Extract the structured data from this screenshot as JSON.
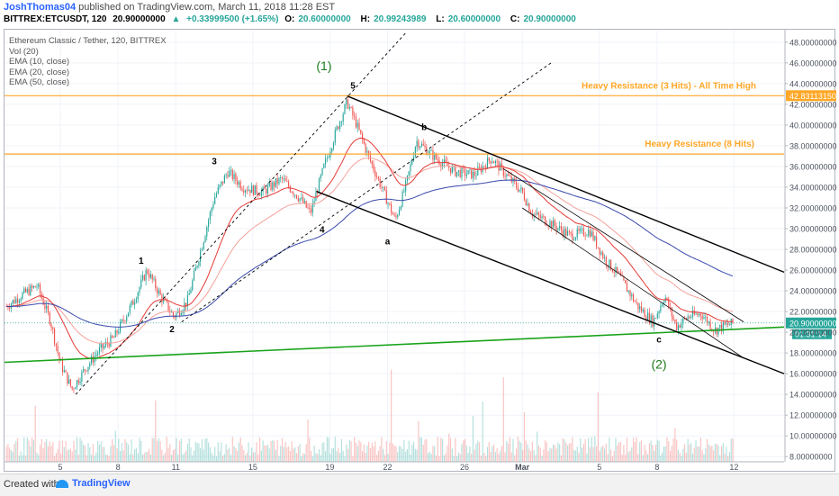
{
  "header": {
    "author": "JoshThomas04",
    "published_text": "published on TradingView.com, March 11, 2018 11:28 EST",
    "symbol": "BITTREX:ETCUSDT, 120",
    "price": "20.90000000",
    "arrow": "▲",
    "change": "+0.33999500 (+1.65%)",
    "open_label": "O:",
    "open": "20.60000000",
    "high_label": "H:",
    "high": "20.99243989",
    "low_label": "L:",
    "low": "20.60000000",
    "close_label": "C:",
    "close": "20.90000000"
  },
  "legend": {
    "title": "Ethereum Classic / Tether, 120, BITTREX",
    "items": [
      "Vol (20)",
      "EMA (10, close)",
      "EMA (20, close)",
      "EMA (50, close)"
    ]
  },
  "footer": {
    "created": "Created with",
    "brand": "TradingView"
  },
  "colors": {
    "up": "#26a69a",
    "down": "#ef5350",
    "ema10": "#e53935",
    "ema20": "#f4a29a",
    "ema50": "#3949ab",
    "resistance": "#ffa726",
    "support": "#19a319",
    "channel": "#000000"
  },
  "chart_data": {
    "type": "candlestick",
    "y_axis": {
      "min": 7.5,
      "max": 49.2,
      "step": 2,
      "tick_labels": [
        "8.00000000",
        "10.00000000",
        "12.00000000",
        "14.00000000",
        "16.00000000",
        "18.00000000",
        "20.00000000",
        "22.00000000",
        "24.00000000",
        "26.00000000",
        "28.00000000",
        "30.00000000",
        "32.00000000",
        "34.00000000",
        "36.00000000",
        "38.00000000",
        "40.00000000",
        "42.00000000",
        "44.00000000",
        "46.00000000",
        "48.00000000"
      ]
    },
    "x_axis": {
      "min_day": 2.1,
      "max_day": 42.6,
      "ticks": [
        {
          "day": 5,
          "label": "5"
        },
        {
          "day": 8,
          "label": "8"
        },
        {
          "day": 11,
          "label": "11"
        },
        {
          "day": 15,
          "label": "15"
        },
        {
          "day": 19,
          "label": "19"
        },
        {
          "day": 22,
          "label": "22"
        },
        {
          "day": 26,
          "label": "26"
        },
        {
          "day": 29,
          "label": "Mar"
        },
        {
          "day": 33,
          "label": "5"
        },
        {
          "day": 36,
          "label": "8"
        },
        {
          "day": 40,
          "label": "12"
        }
      ]
    },
    "price_path": [
      [
        2.2,
        22.5
      ],
      [
        3.0,
        23.6
      ],
      [
        3.8,
        24.5
      ],
      [
        4.5,
        21.0
      ],
      [
        5.0,
        17.0
      ],
      [
        5.6,
        14.5
      ],
      [
        6.3,
        16.5
      ],
      [
        7.0,
        18.2
      ],
      [
        7.8,
        19.5
      ],
      [
        8.8,
        23.0
      ],
      [
        9.5,
        26.0
      ],
      [
        10.2,
        23.5
      ],
      [
        10.9,
        21.5
      ],
      [
        11.6,
        23.0
      ],
      [
        12.3,
        28.0
      ],
      [
        13.0,
        33.0
      ],
      [
        13.7,
        35.5
      ],
      [
        14.5,
        34.0
      ],
      [
        15.5,
        33.5
      ],
      [
        16.5,
        34.8
      ],
      [
        17.4,
        33.0
      ],
      [
        18.0,
        31.5
      ],
      [
        18.7,
        36.0
      ],
      [
        19.4,
        39.8
      ],
      [
        19.9,
        42.2
      ],
      [
        20.4,
        40.0
      ],
      [
        21.0,
        37.0
      ],
      [
        21.8,
        33.5
      ],
      [
        22.4,
        30.8
      ],
      [
        23.0,
        34.5
      ],
      [
        23.5,
        38.5
      ],
      [
        24.5,
        36.8
      ],
      [
        25.5,
        35.5
      ],
      [
        26.5,
        35.2
      ],
      [
        27.4,
        36.8
      ],
      [
        28.0,
        35.5
      ],
      [
        29.0,
        33.5
      ],
      [
        29.5,
        31.5
      ],
      [
        30.5,
        30.5
      ],
      [
        31.5,
        29.3
      ],
      [
        32.5,
        29.8
      ],
      [
        33.3,
        27.0
      ],
      [
        34.0,
        25.5
      ],
      [
        35.0,
        22.5
      ],
      [
        35.8,
        21.0
      ],
      [
        36.4,
        23.5
      ],
      [
        37.0,
        20.5
      ],
      [
        37.6,
        21.5
      ],
      [
        38.3,
        21.8
      ],
      [
        39.0,
        20.2
      ],
      [
        39.5,
        20.6
      ],
      [
        40.0,
        20.9
      ]
    ],
    "horizontal_levels": [
      {
        "name": "Heavy Resistance (3 Hits) - All Time High",
        "value": 42.8311315,
        "value_label": "42.83113150"
      },
      {
        "name": "Heavy Resistance (8 Hits)",
        "value": 37.2
      }
    ],
    "last_price": {
      "value": 20.9,
      "label": "20.90000000",
      "countdown": "01:31:14"
    },
    "trend_lines": [
      {
        "kind": "support",
        "points": [
          [
            2.1,
            17.1
          ],
          [
            42.6,
            20.5
          ]
        ]
      },
      {
        "kind": "channel-upper",
        "points": [
          [
            19.9,
            42.8
          ],
          [
            42.6,
            25.8
          ]
        ]
      },
      {
        "kind": "channel-lower",
        "points": [
          [
            18.3,
            33.6
          ],
          [
            42.6,
            16.0
          ]
        ]
      },
      {
        "kind": "inner-upper",
        "points": [
          [
            28.0,
            35.8
          ],
          [
            40.5,
            21.0
          ]
        ]
      },
      {
        "kind": "inner-lower",
        "points": [
          [
            29.0,
            32.0
          ],
          [
            40.5,
            17.5
          ]
        ]
      },
      {
        "kind": "dashed-upper",
        "points": [
          [
            5.8,
            14.0
          ],
          [
            23.0,
            49.0
          ]
        ]
      },
      {
        "kind": "dashed-lower",
        "points": [
          [
            11.3,
            21.0
          ],
          [
            30.5,
            46.0
          ]
        ]
      }
    ],
    "wave_labels": [
      {
        "text": "(1)",
        "day": 18.7,
        "price": 45.3,
        "color": "green"
      },
      {
        "text": "5",
        "day": 20.2,
        "price": 43.5
      },
      {
        "text": "3",
        "day": 13.0,
        "price": 36.2
      },
      {
        "text": "1",
        "day": 9.2,
        "price": 26.6
      },
      {
        "text": "2",
        "day": 10.8,
        "price": 20.0
      },
      {
        "text": "4",
        "day": 18.6,
        "price": 29.6
      },
      {
        "text": "a",
        "day": 22.0,
        "price": 28.5
      },
      {
        "text": "b",
        "day": 23.9,
        "price": 39.5
      },
      {
        "text": "c",
        "day": 36.1,
        "price": 19.0
      },
      {
        "text": "(2)",
        "day": 36.1,
        "price": 16.5,
        "color": "green"
      }
    ]
  }
}
